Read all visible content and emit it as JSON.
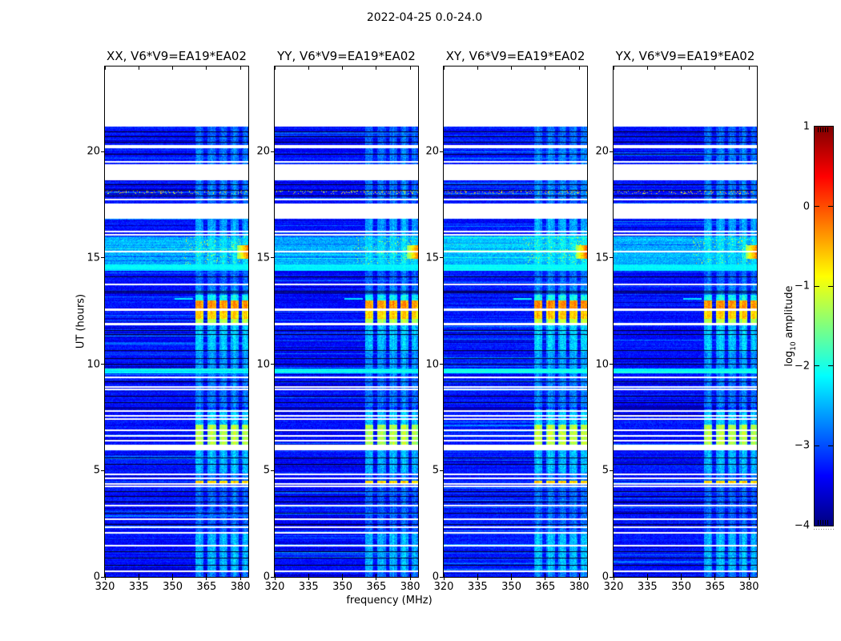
{
  "figure": {
    "title": "2022-04-25 0.0-24.0",
    "background": "#ffffff"
  },
  "axes": {
    "x_label": "frequency (MHz)",
    "y_label": "UT (hours)",
    "x_ticks": [
      320,
      335,
      350,
      365,
      380
    ],
    "y_ticks": [
      0,
      5,
      10,
      15,
      20
    ],
    "x_range": [
      320,
      383.5
    ],
    "y_range": [
      0,
      24
    ]
  },
  "colorbar": {
    "label_prefix": "log",
    "label_sub": "10",
    "label_suffix": " amplitude",
    "tick_labels": [
      "1",
      "0",
      "−1",
      "−2",
      "−3",
      "−4"
    ],
    "tick_values": [
      1,
      0,
      -1,
      -2,
      -3,
      -4
    ],
    "range": [
      -4,
      1
    ],
    "jet_stops": [
      [
        "#00007f",
        1
      ],
      [
        "#0000ff",
        0.875
      ],
      [
        "#00ffff",
        0.625
      ],
      [
        "#ffff00",
        0.375
      ],
      [
        "#ff0000",
        0.125
      ],
      [
        "#7f0000",
        0
      ]
    ]
  },
  "chart_data": {
    "type": "heatmap",
    "title": "2022-04-25 0.0-24.0",
    "xlabel": "frequency (MHz)",
    "ylabel": "UT (hours)",
    "value_label": "log10 amplitude",
    "value_range": [
      -4,
      1
    ],
    "x_range": [
      320,
      383.5
    ],
    "y_range": [
      0,
      24
    ],
    "panels": [
      {
        "pol": "XX",
        "title": "XX, V6*V9=EA19*EA02"
      },
      {
        "pol": "YY",
        "title": "YY, V6*V9=EA19*EA02"
      },
      {
        "pol": "XY",
        "title": "XY, V6*V9=EA19*EA02"
      },
      {
        "pol": "YX",
        "title": "YX, V6*V9=EA19*EA02"
      }
    ],
    "rfi_bands_mhz": [
      [
        359.8,
        363.6
      ],
      [
        365.2,
        369.0
      ],
      [
        370.4,
        374.2
      ],
      [
        375.6,
        379.2
      ],
      [
        380.6,
        383.2
      ]
    ],
    "segments": [
      [
        24.0,
        21.17,
        "white",
        0
      ],
      [
        21.17,
        20.25,
        "data",
        1
      ],
      [
        20.25,
        20.16,
        "white",
        0
      ],
      [
        20.16,
        19.42,
        "data",
        1.2
      ],
      [
        19.42,
        18.66,
        "white",
        0
      ],
      [
        18.66,
        17.72,
        "data",
        1.2
      ],
      [
        17.72,
        17.55,
        "data",
        1
      ],
      [
        17.55,
        16.86,
        "white",
        0
      ],
      [
        16.86,
        16.02,
        "data",
        1.6
      ],
      [
        16.02,
        14.68,
        "bright",
        2.2
      ],
      [
        14.68,
        14.4,
        "cyan",
        2
      ],
      [
        14.4,
        13.78,
        "data",
        1
      ],
      [
        13.78,
        13.25,
        "data",
        1.3
      ],
      [
        13.25,
        12.98,
        "data",
        2.6
      ],
      [
        12.98,
        12.62,
        "orange",
        3
      ],
      [
        12.62,
        12.52,
        "white",
        0
      ],
      [
        12.52,
        12.12,
        "orange2",
        3
      ],
      [
        12.12,
        11.96,
        "green",
        2.6
      ],
      [
        11.96,
        11.84,
        "white",
        0
      ],
      [
        11.84,
        10.6,
        "data",
        2
      ],
      [
        10.6,
        9.78,
        "data",
        1.5
      ],
      [
        9.78,
        9.56,
        "cyan",
        2
      ],
      [
        9.56,
        7.97,
        "data",
        1.2
      ],
      [
        7.97,
        7.87,
        "dark",
        0.5
      ],
      [
        7.87,
        7.15,
        "data",
        2
      ],
      [
        7.15,
        6.22,
        "green",
        3
      ],
      [
        6.22,
        5.95,
        "white",
        0
      ],
      [
        5.95,
        4.9,
        "data",
        1.8
      ],
      [
        4.9,
        4.52,
        "data",
        1.2
      ],
      [
        4.52,
        4.42,
        "orange2",
        2
      ],
      [
        4.42,
        2.1,
        "data",
        1
      ],
      [
        2.1,
        1.55,
        "data",
        1.8
      ],
      [
        1.55,
        0.3,
        "data",
        1.8
      ],
      [
        0.3,
        0.0,
        "data",
        1.2
      ]
    ],
    "white_lines_ut": [
      20.3,
      19.55,
      17.8,
      16.28,
      16.12,
      15.35,
      13.8,
      9.42,
      8.97,
      8.86,
      7.82,
      7.62,
      7.46,
      6.92,
      6.66,
      6.46,
      4.86,
      4.66,
      4.4,
      4.31,
      3.38,
      2.76,
      2.36,
      2.12,
      1.52,
      0.3
    ],
    "black_lines_ut": [
      20.95,
      20.72,
      20.45,
      19.9,
      18.45,
      18.2,
      17.95,
      14.12,
      13.45,
      13.36,
      11.62,
      11.42,
      10.66,
      10.3,
      10.02,
      9.2,
      8.52,
      8.22,
      5.6,
      5.3,
      4.05,
      3.82,
      3.56,
      3.0,
      2.5,
      1.2,
      0.9,
      0.55
    ],
    "features": {
      "edge_blob": {
        "ut": [
          14.95,
          15.6
        ],
        "f_min_mhz": 378.5,
        "note": "orange-red burst at band top edge"
      },
      "speckle_row_ut": [
        18.02,
        18.18
      ],
      "cyan_streak": {
        "ut": [
          13.02,
          13.12
        ],
        "f_mhz": [
          351,
          359
        ]
      }
    }
  }
}
